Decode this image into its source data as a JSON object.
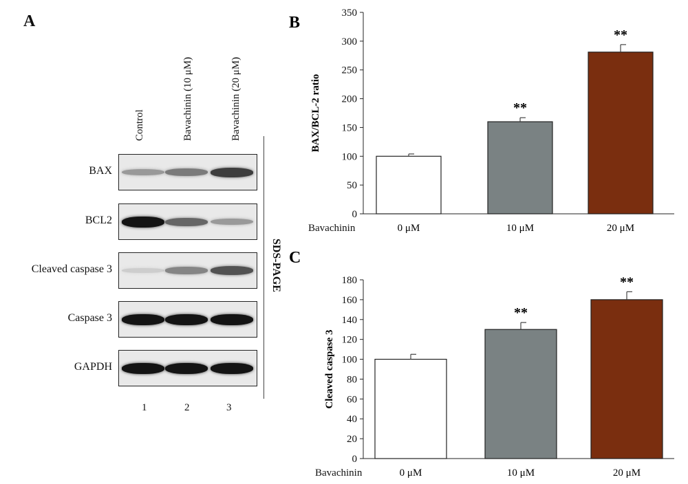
{
  "panel_a": {
    "letter": "A",
    "lanes": [
      "Control",
      "Bavachinin (10 μM)",
      "Bavachinin (20 μM)"
    ],
    "lane_numbers": [
      "1",
      "2",
      "3"
    ],
    "rows": [
      {
        "label": "BAX",
        "intensity": [
          0.35,
          0.5,
          0.8
        ]
      },
      {
        "label": "BCL2",
        "intensity": [
          1.0,
          0.6,
          0.35
        ]
      },
      {
        "label": "Cleaved caspase 3",
        "intensity": [
          0.1,
          0.45,
          0.7
        ]
      },
      {
        "label": "Caspase 3",
        "intensity": [
          1.0,
          1.0,
          1.0
        ]
      },
      {
        "label": "GAPDH",
        "intensity": [
          1.0,
          1.0,
          1.0
        ]
      }
    ],
    "side_label": "SDS-PAGE"
  },
  "chart_data": [
    {
      "panel": "B",
      "type": "bar",
      "categories": [
        "0 μM",
        "10 μM",
        "20 μM"
      ],
      "category_axis_label": "Bavachinin",
      "values": [
        100,
        160,
        281
      ],
      "errors": [
        4,
        7,
        13
      ],
      "significance": [
        "",
        "**",
        "**"
      ],
      "colors": [
        "#ffffff",
        "#7a8283",
        "#7a2e0f"
      ],
      "ylabel": "BAX/BCL-2 ratio",
      "ylim": [
        0,
        350
      ],
      "yticks": [
        0,
        50,
        100,
        150,
        200,
        250,
        300,
        350
      ]
    },
    {
      "panel": "C",
      "type": "bar",
      "categories": [
        "0 μM",
        "10 μM",
        "20 μM"
      ],
      "category_axis_label": "Bavachinin",
      "values": [
        100,
        130,
        160
      ],
      "errors": [
        5,
        7,
        8
      ],
      "significance": [
        "",
        "**",
        "**"
      ],
      "colors": [
        "#ffffff",
        "#7a8283",
        "#7a2e0f"
      ],
      "ylabel": "Cleaved caspase 3",
      "ylim": [
        0,
        180
      ],
      "yticks": [
        0,
        20,
        40,
        60,
        80,
        100,
        120,
        140,
        160,
        180
      ]
    }
  ]
}
